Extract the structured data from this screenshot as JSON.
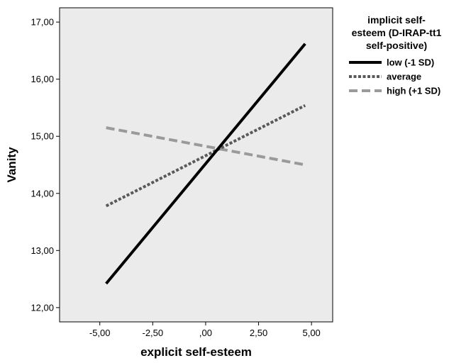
{
  "chart_data": {
    "type": "line",
    "xlabel": "explicit self-esteem",
    "ylabel": "Vanity",
    "xlim": [
      -6.9,
      6.0
    ],
    "ylim": [
      11.75,
      17.25
    ],
    "x_ticks": [
      -5,
      -2.5,
      0,
      2.5,
      5
    ],
    "x_tick_labels": [
      "-5,00",
      "-2,50",
      ",00",
      "2,50",
      "5,00"
    ],
    "y_ticks": [
      12,
      13,
      14,
      15,
      16,
      17
    ],
    "y_tick_labels": [
      "12,00",
      "13,00",
      "14,00",
      "15,00",
      "16,00",
      "17,00"
    ],
    "grid": false,
    "plot_background": "#ebebeb",
    "legend": {
      "title_lines": [
        "implicit self-",
        "esteem (D-IRAP-tt1",
        "self-positive)"
      ],
      "placement": "right"
    },
    "series": [
      {
        "name": "low (-1 SD)",
        "x": [
          -4.7,
          4.7
        ],
        "y": [
          12.42,
          16.62
        ],
        "color": "#000000",
        "style": "solid"
      },
      {
        "name": "average",
        "x": [
          -4.7,
          4.7
        ],
        "y": [
          13.78,
          15.54
        ],
        "color": "#595959",
        "style": "dotted"
      },
      {
        "name": "high (+1 SD)",
        "x": [
          -4.7,
          4.7
        ],
        "y": [
          15.15,
          14.5
        ],
        "color": "#9a9a9a",
        "style": "dashed"
      }
    ]
  }
}
